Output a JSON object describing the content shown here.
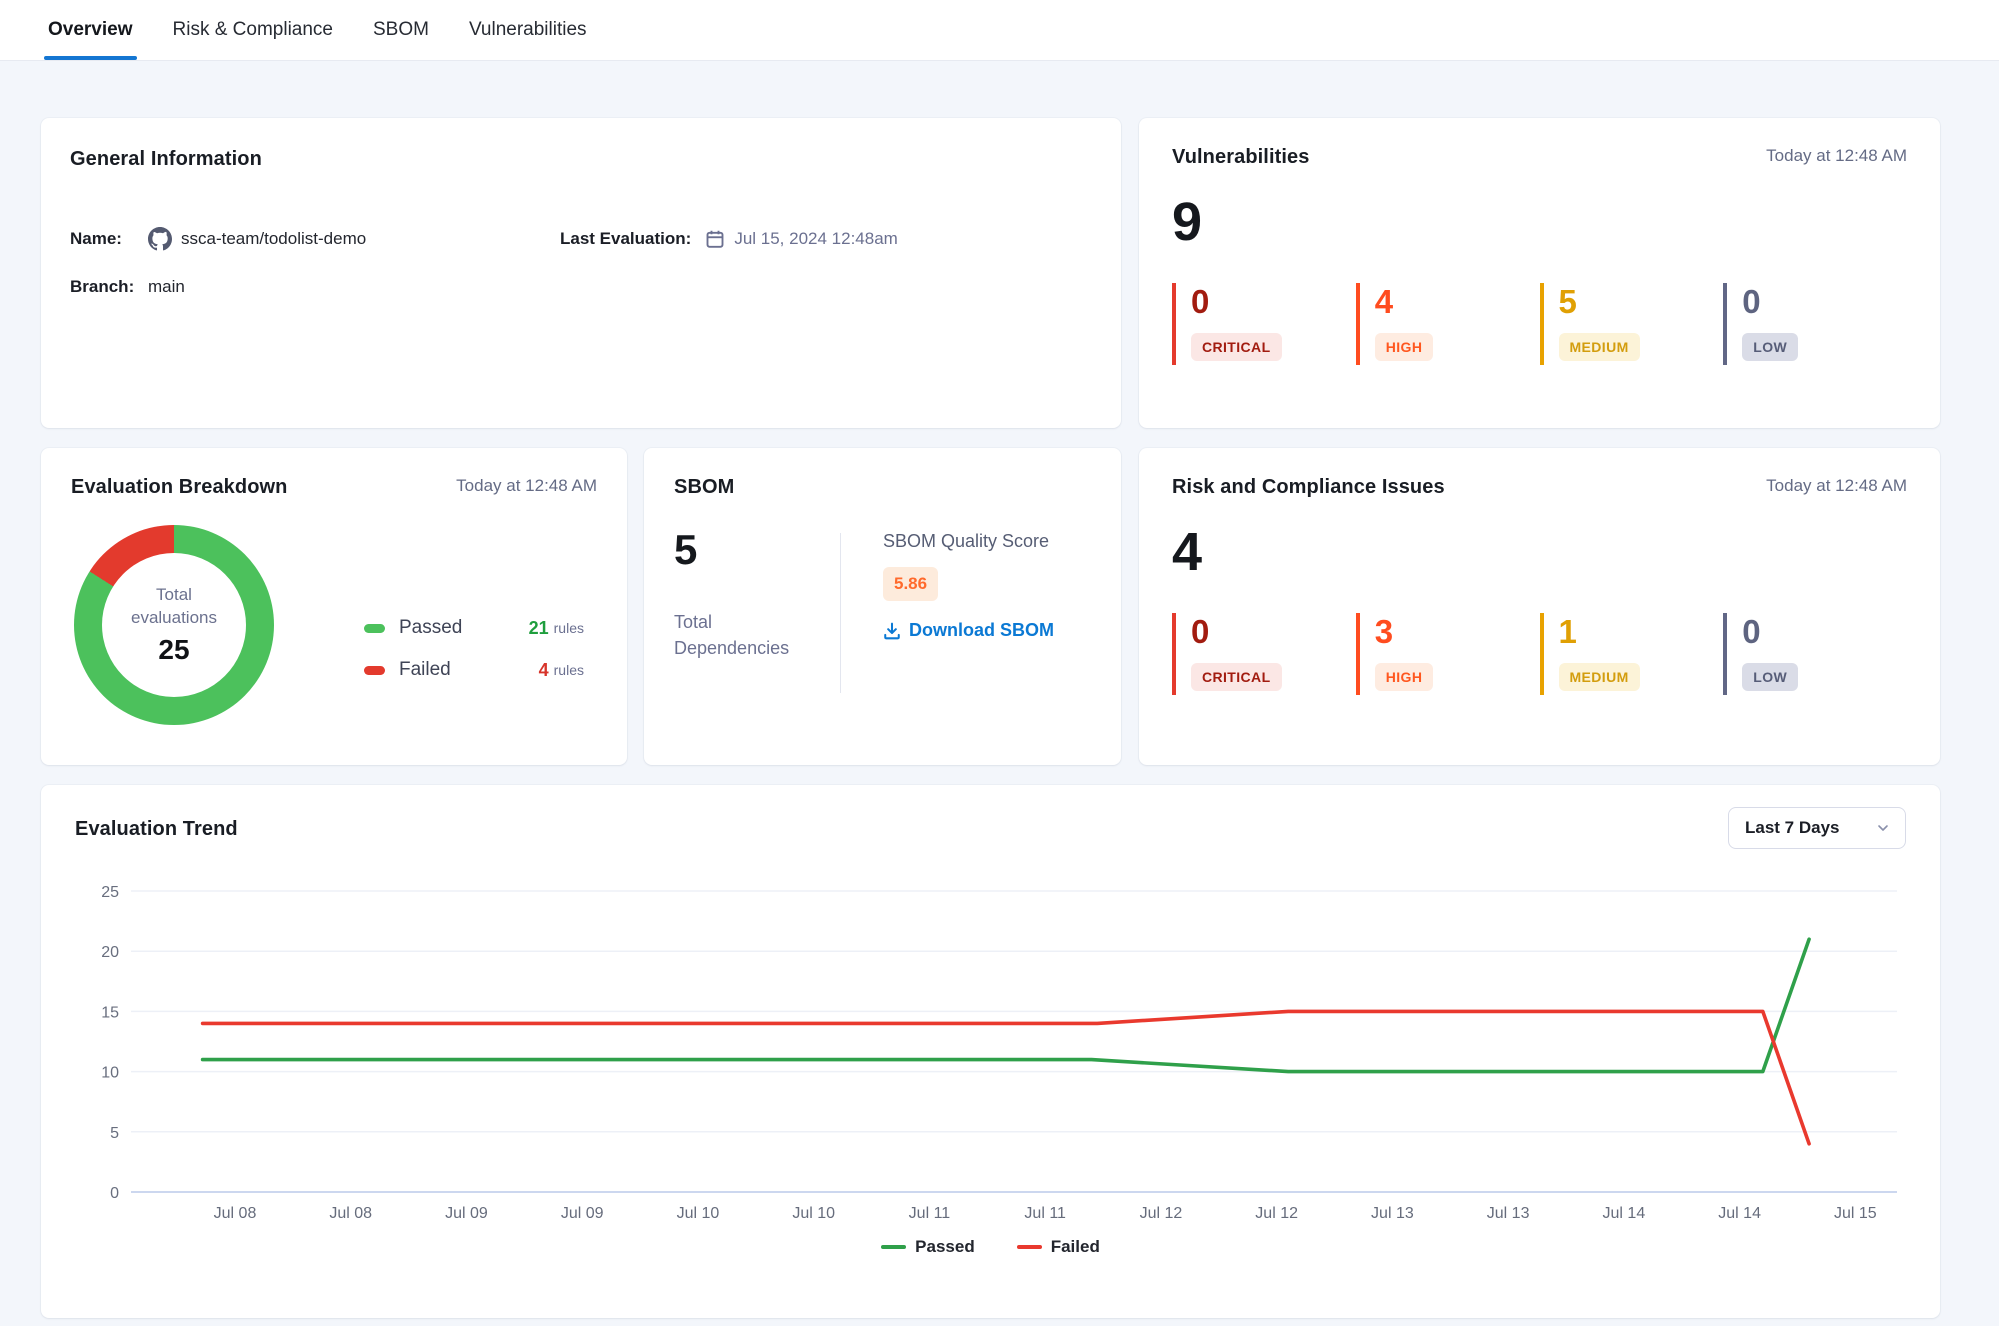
{
  "tabs": [
    {
      "label": "Overview",
      "active": true
    },
    {
      "label": "Risk & Compliance",
      "active": false
    },
    {
      "label": "SBOM",
      "active": false
    },
    {
      "label": "Vulnerabilities",
      "active": false
    }
  ],
  "general_info": {
    "title": "General Information",
    "name_label": "Name:",
    "name_value": "ssca-team/todolist-demo",
    "branch_label": "Branch:",
    "branch_value": "main",
    "last_eval_label": "Last Evaluation:",
    "last_eval_value": "Jul 15, 2024 12:48am"
  },
  "vulnerabilities": {
    "title": "Vulnerabilities",
    "timestamp": "Today at 12:48 AM",
    "total": "9",
    "severities": [
      {
        "label": "CRITICAL",
        "count": "0"
      },
      {
        "label": "HIGH",
        "count": "4"
      },
      {
        "label": "MEDIUM",
        "count": "5"
      },
      {
        "label": "LOW",
        "count": "0"
      }
    ]
  },
  "evaluation_breakdown": {
    "title": "Evaluation Breakdown",
    "timestamp": "Today at 12:48 AM"
  },
  "sbom": {
    "title": "SBOM",
    "total": "5",
    "total_label": "Total Dependencies",
    "score_label": "SBOM Quality Score",
    "score": "5.86",
    "download_label": "Download SBOM"
  },
  "risk_compliance": {
    "title": "Risk and Compliance Issues",
    "timestamp": "Today at 12:48 AM",
    "total": "4",
    "severities": [
      {
        "label": "CRITICAL",
        "count": "0"
      },
      {
        "label": "HIGH",
        "count": "3"
      },
      {
        "label": "MEDIUM",
        "count": "1"
      },
      {
        "label": "LOW",
        "count": "0"
      }
    ]
  },
  "trend": {
    "title": "Evaluation Trend",
    "range_selector": "Last 7 Days"
  },
  "chart_data": [
    {
      "type": "donut",
      "title": "Evaluation Breakdown",
      "center_label": "Total evaluations",
      "center_value": "25",
      "total": 25,
      "segments": [
        {
          "name": "Passed",
          "value": 21,
          "unit": "rules",
          "color": "#4cc15c",
          "value_color": "#1f9e3d"
        },
        {
          "name": "Failed",
          "value": 4,
          "unit": "rules",
          "color": "#e33a2d",
          "value_color": "#d7342a"
        }
      ],
      "note": "red segment ends at 12 o'clock, drawn counter-clockwise from top"
    },
    {
      "type": "line",
      "title": "Evaluation Trend",
      "x_tick_labels": [
        "Jul 08",
        "Jul 08",
        "Jul 09",
        "Jul 09",
        "Jul 10",
        "Jul 10",
        "Jul 11",
        "Jul 11",
        "Jul 12",
        "Jul 12",
        "Jul 13",
        "Jul 13",
        "Jul 14",
        "Jul 14",
        "Jul 15"
      ],
      "y_ticks": [
        0,
        5,
        10,
        15,
        20,
        25
      ],
      "ylim": [
        0,
        25
      ],
      "grid": true,
      "legend_position": "bottom",
      "series": [
        {
          "name": "Passed",
          "color": "#2fa04a",
          "points": [
            [
              -0.28,
              11
            ],
            [
              7.4,
              11
            ],
            [
              9.1,
              10
            ],
            [
              13.2,
              10
            ],
            [
              13.6,
              21
            ]
          ]
        },
        {
          "name": "Failed",
          "color": "#e9392e",
          "points": [
            [
              -0.28,
              14
            ],
            [
              7.45,
              14
            ],
            [
              9.1,
              15
            ],
            [
              13.2,
              15
            ],
            [
              13.6,
              4
            ]
          ]
        }
      ]
    }
  ]
}
